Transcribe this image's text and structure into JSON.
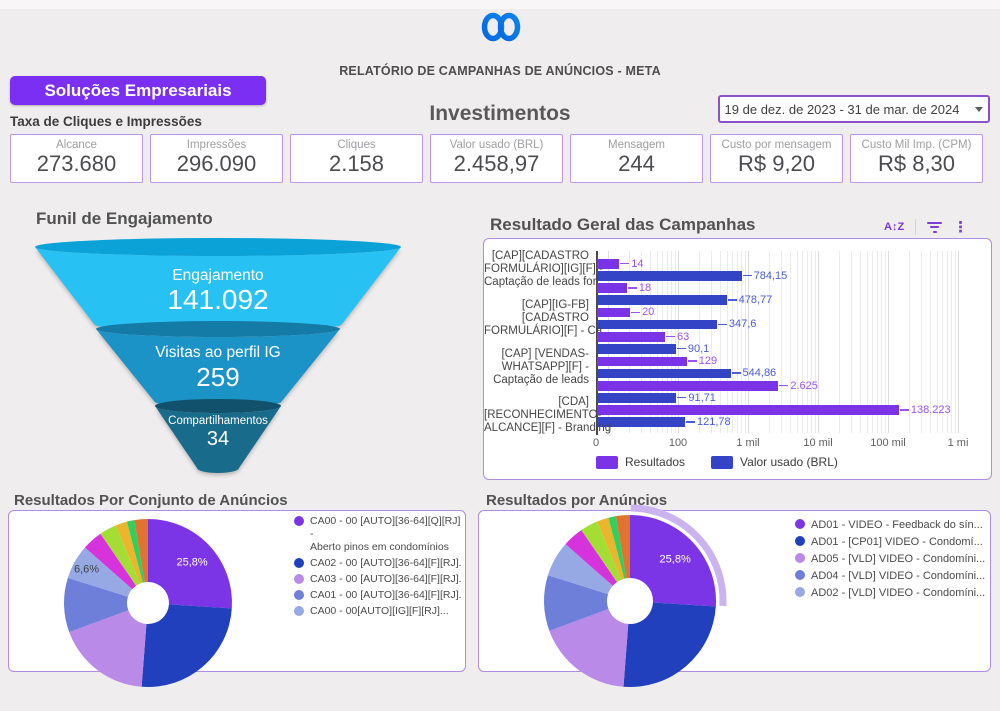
{
  "page": {
    "background": "#efedee"
  },
  "header": {
    "report_title": "RELATÓRIO DE CAMPANHAS DE ANÚNCIOS - META",
    "solutions_button": "Soluções Empresariais",
    "kpi_section_label": "Taxa de Cliques e Impressões",
    "investments_heading": "Investimentos",
    "date_range": {
      "value": "19 de dez. de 2023 - 31 de mar. de 2024"
    },
    "brand_color": "#7b2ff2",
    "logo_blue": "#0668e1"
  },
  "kpis": [
    {
      "label": "Alcance",
      "value": "273.680"
    },
    {
      "label": "Impressões",
      "value": "296.090"
    },
    {
      "label": "Cliques",
      "value": "2.158"
    },
    {
      "label": "Valor usado (BRL)",
      "value": "2.458,97"
    },
    {
      "label": "Mensagem",
      "value": "244"
    },
    {
      "label": "Custo por mensagem",
      "value": "R$ 9,20"
    },
    {
      "label": "Custo Mil Imp. (CPM)",
      "value": "R$ 8,30"
    }
  ],
  "toolbar": {
    "icons": [
      {
        "name": "sort-az-icon",
        "glyph": "A↕Z"
      },
      {
        "name": "filter-icon"
      },
      {
        "name": "more-vert-icon",
        "glyph": "⋮"
      }
    ]
  },
  "chart_data": [
    {
      "id": "engagement-funnel",
      "type": "funnel",
      "title": "Funil de Engajamento",
      "stages": [
        {
          "label": "Engajamento",
          "value": 141092,
          "display": "141.092",
          "color": "#27c2f3",
          "rim": "#0ba2d8"
        },
        {
          "label": "Visitas ao perfil IG",
          "value": 259,
          "display": "259",
          "color": "#1c93c6",
          "rim": "#147aa6"
        },
        {
          "label": "Compartilhamentos",
          "value": 34,
          "display": "34",
          "color": "#196b8c",
          "rim": "#11516b"
        }
      ]
    },
    {
      "id": "campaign-results",
      "type": "bar",
      "title": "Resultado Geral das Campanhas",
      "orientation": "horizontal",
      "x_scale": "log",
      "x_ticks": [
        {
          "label": "0",
          "value": 0
        },
        {
          "label": "100",
          "value": 100
        },
        {
          "label": "1 mil",
          "value": 1000
        },
        {
          "label": "10 mil",
          "value": 10000
        },
        {
          "label": "100 mil",
          "value": 100000
        },
        {
          "label": "1 mi",
          "value": 1000000
        }
      ],
      "series": [
        {
          "name": "Resultados",
          "color": "#7b33e8",
          "label_color": "#9a55f0"
        },
        {
          "name": "Valor usado (BRL)",
          "color": "#3345c6",
          "label_color": "#4b5cd8"
        }
      ],
      "rows": [
        {
          "category_lines": [
            "[CAP][CADASTRO",
            "FORMULÁRIO][IG][F] -",
            "Captação de leads for..."
          ],
          "resultados": 14,
          "resultados_label": "14",
          "valor_usado": 784.15,
          "valor_label": "784,15"
        },
        {
          "category_lines": null,
          "resultados": 18,
          "resultados_label": "18",
          "valor_usado": 478.77,
          "valor_label": "478,77"
        },
        {
          "category_lines": [
            "[CAP][IG-FB]",
            "[CADASTRO",
            "FORMULÁRIO][F] - Ca..."
          ],
          "resultados": 20,
          "resultados_label": "20",
          "valor_usado": 347.6,
          "valor_label": "347,6"
        },
        {
          "category_lines": null,
          "resultados": 63,
          "resultados_label": "63",
          "valor_usado": 90.1,
          "valor_label": "90,1"
        },
        {
          "category_lines": [
            "[CAP] [VENDAS-",
            "WHATSAPP][F] -",
            "Captação de leads"
          ],
          "resultados": 129,
          "resultados_label": "129",
          "valor_usado": 544.86,
          "valor_label": "544,86"
        },
        {
          "category_lines": null,
          "resultados": 2625,
          "resultados_label": "2.625",
          "valor_usado": 91.71,
          "valor_label": "91,71"
        },
        {
          "category_lines": [
            "[CDA]",
            "[RECONHECIMENTO-",
            "ALCANCE][F] - Branding"
          ],
          "resultados": 138223,
          "resultados_label": "138.223",
          "valor_usado": 121.78,
          "valor_label": "121,78"
        }
      ],
      "legend_position": "bottom"
    },
    {
      "id": "results-by-adset",
      "type": "pie",
      "title": "Resultados Por Conjunto de Anúncios",
      "slices": [
        {
          "label": "CA00 - 00 [AUTO][36-64][Q][RJ] - Aberto pinos em condomínios",
          "legend_lines": [
            "CA00 - 00 [AUTO][36-64][Q][RJ] -",
            "Aberto pinos em condomínios"
          ],
          "pct": 25.8,
          "display": "25,8%",
          "label_color": "#ffffff",
          "label_rf": 0.72,
          "color": "#7c35e6"
        },
        {
          "label": "CA02 - 00 [AUTO][36-64][F][RJ]...",
          "pct": 25.0,
          "color": "#2140bd"
        },
        {
          "label": "CA03 - 00 [AUTO][36-64][F][RJ]...",
          "pct": 18.0,
          "color": "#b98ae8"
        },
        {
          "label": "CA01 - 00 [AUTO][36-64][F][RJ]...",
          "pct": 10.4,
          "color": "#6d7fd8"
        },
        {
          "label": "CA00 - 00[AUTO][IG][F][RJ]...",
          "pct": 6.6,
          "display": "6,6%",
          "label_color": "#3f3f3f",
          "label_rf": 0.84,
          "color": "#96a9e4"
        },
        {
          "label": null,
          "pct": 3.9,
          "color": "#d633dc"
        },
        {
          "label": null,
          "pct": 3.3,
          "color": "#a4de35"
        },
        {
          "label": null,
          "pct": 2.2,
          "color": "#ecb52e"
        },
        {
          "label": null,
          "pct": 1.4,
          "color": "#2fd060"
        },
        {
          "label": null,
          "pct": 2.6,
          "color": "#e0742e"
        }
      ]
    },
    {
      "id": "results-by-ad",
      "type": "pie",
      "title": "Resultados por Anúncios",
      "highlight_slice": 0,
      "highlight_color": "#cbb3ef",
      "slices": [
        {
          "label": "AD01 - VIDEO - Feedback do sín...",
          "pct": 25.8,
          "display": "25,8%",
          "label_color": "#ffffff",
          "label_rf": 0.72,
          "color": "#7c35e6"
        },
        {
          "label": "AD01 - [CP01] VIDEO - Condomí...",
          "pct": 25.0,
          "color": "#2140bd"
        },
        {
          "label": "AD05 - [VLD] VIDEO - Condomíni...",
          "pct": 18.0,
          "color": "#b98ae8"
        },
        {
          "label": "AD04 - [VLD] VIDEO - Condomíni...",
          "pct": 10.4,
          "color": "#6d7fd8"
        },
        {
          "label": "AD02 - [VLD] VIDEO - Condomíni...",
          "pct": 6.6,
          "color": "#96a9e4"
        },
        {
          "label": null,
          "pct": 3.9,
          "color": "#d633dc"
        },
        {
          "label": null,
          "pct": 3.3,
          "color": "#a4de35"
        },
        {
          "label": null,
          "pct": 2.2,
          "color": "#ecb52e"
        },
        {
          "label": null,
          "pct": 1.4,
          "color": "#2fd060"
        },
        {
          "label": null,
          "pct": 2.6,
          "color": "#e0742e"
        }
      ]
    }
  ]
}
